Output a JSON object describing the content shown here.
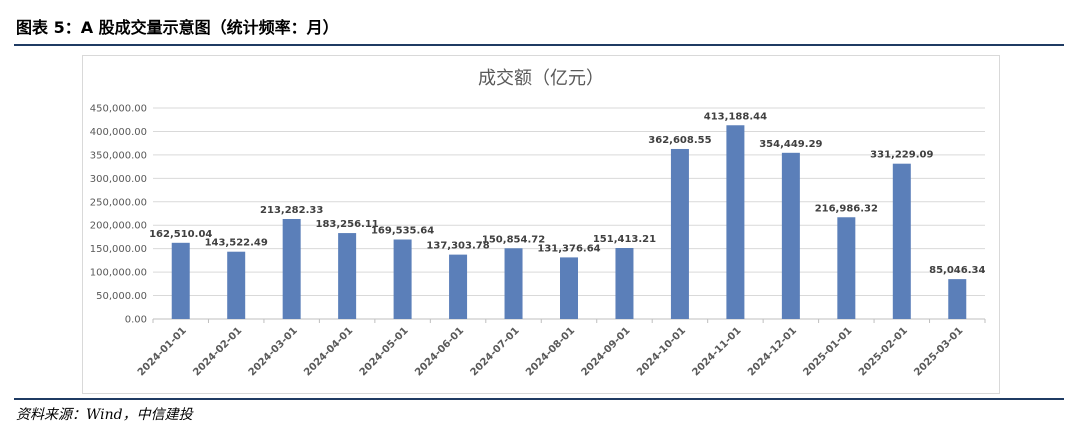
{
  "caption": "图表 5：A 股成交量示意图（统计频率：月）",
  "source": "资料来源：Wind，中信建投",
  "chart_data": {
    "type": "bar",
    "title": "成交额（亿元）",
    "xlabel": "",
    "ylabel": "",
    "ylim": [
      0,
      450000
    ],
    "ytick_step": 50000,
    "ytick_labels": [
      "0.00",
      "50,000.00",
      "100,000.00",
      "150,000.00",
      "200,000.00",
      "250,000.00",
      "300,000.00",
      "350,000.00",
      "400,000.00",
      "450,000.00"
    ],
    "grid": true,
    "bar_color": "#5b7fb9",
    "categories": [
      "2024-01-01",
      "2024-02-01",
      "2024-03-01",
      "2024-04-01",
      "2024-05-01",
      "2024-06-01",
      "2024-07-01",
      "2024-08-01",
      "2024-09-01",
      "2024-10-01",
      "2024-11-01",
      "2024-12-01",
      "2025-01-01",
      "2025-02-01",
      "2025-03-01"
    ],
    "values": [
      162510.04,
      143522.49,
      213282.33,
      183256.11,
      169535.64,
      137303.78,
      150854.72,
      131376.64,
      151413.21,
      362608.55,
      413188.44,
      354449.29,
      216986.32,
      331229.09,
      85046.34
    ],
    "value_labels": [
      "162,510.04",
      "143,522.49",
      "213,282.33",
      "183,256.11",
      "169,535.64",
      "137,303.78",
      "150,854.72",
      "131,376.64",
      "151,413.21",
      "362,608.55",
      "413,188.44",
      "354,449.29",
      "216,986.32",
      "331,229.09",
      "85,046.34"
    ]
  }
}
